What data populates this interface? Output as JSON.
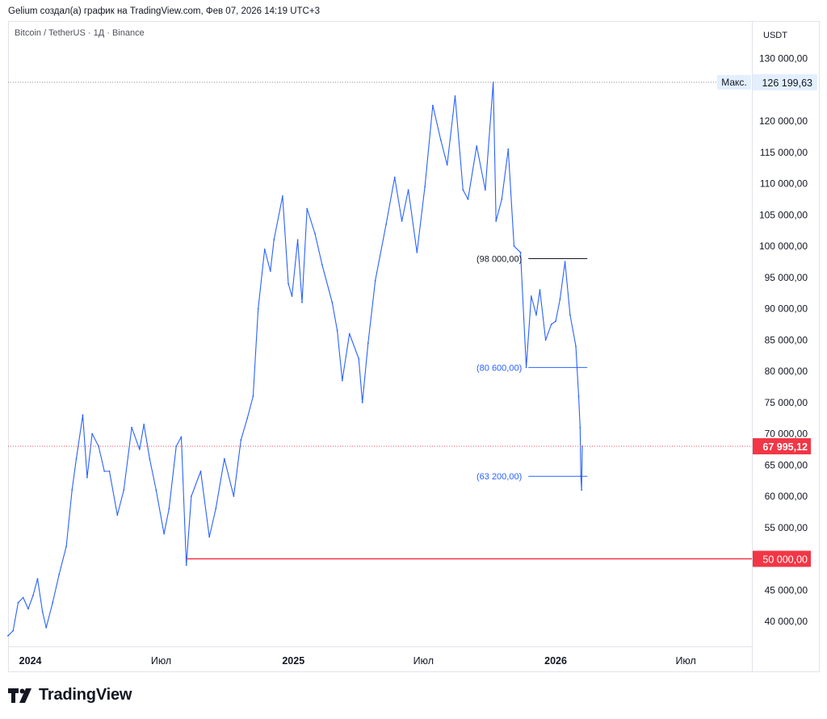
{
  "header": {
    "caption": "Gelium создал(а) график на TradingView.com, Фев 07, 2026 14:19 UTC+3"
  },
  "chart_data": {
    "type": "line",
    "title": "Bitcoin / TetherUS · 1Д · Binance",
    "currency": "USDT",
    "ylim": [
      36000,
      136000
    ],
    "xlim": [
      "2023-12-01",
      "2026-10-01"
    ],
    "y_ticks": [
      {
        "value": 40000,
        "label": "40 000,00"
      },
      {
        "value": 45000,
        "label": "45 000,00"
      },
      {
        "value": 55000,
        "label": "55 000,00"
      },
      {
        "value": 60000,
        "label": "60 000,00"
      },
      {
        "value": 65000,
        "label": "65 000,00"
      },
      {
        "value": 70000,
        "label": "70 000,00"
      },
      {
        "value": 75000,
        "label": "75 000,00"
      },
      {
        "value": 80000,
        "label": "80 000,00"
      },
      {
        "value": 85000,
        "label": "85 000,00"
      },
      {
        "value": 90000,
        "label": "90 000,00"
      },
      {
        "value": 95000,
        "label": "95 000,00"
      },
      {
        "value": 100000,
        "label": "100 000,00"
      },
      {
        "value": 105000,
        "label": "105 000,00"
      },
      {
        "value": 110000,
        "label": "110 000,00"
      },
      {
        "value": 115000,
        "label": "115 000,00"
      },
      {
        "value": 120000,
        "label": "120 000,00"
      },
      {
        "value": 130000,
        "label": "130 000,00"
      }
    ],
    "x_ticks": [
      {
        "date": "2024-01-01",
        "label": "2024",
        "bold": true
      },
      {
        "date": "2024-07-01",
        "label": "Июл",
        "bold": false
      },
      {
        "date": "2025-01-01",
        "label": "2025",
        "bold": true
      },
      {
        "date": "2025-07-01",
        "label": "Июл",
        "bold": false
      },
      {
        "date": "2026-01-01",
        "label": "2026",
        "bold": true
      },
      {
        "date": "2026-07-01",
        "label": "Июл",
        "bold": false
      }
    ],
    "series": [
      {
        "color": "#2962ff",
        "points": [
          [
            "2023-12-01",
            37700
          ],
          [
            "2023-12-08",
            38500
          ],
          [
            "2023-12-15",
            43000
          ],
          [
            "2023-12-22",
            43800
          ],
          [
            "2023-12-29",
            42000
          ],
          [
            "2024-01-05",
            44200
          ],
          [
            "2024-01-11",
            46800
          ],
          [
            "2024-01-18",
            41500
          ],
          [
            "2024-01-23",
            39000
          ],
          [
            "2024-02-01",
            43000
          ],
          [
            "2024-02-10",
            47500
          ],
          [
            "2024-02-20",
            52000
          ],
          [
            "2024-02-28",
            61000
          ],
          [
            "2024-03-05",
            66000
          ],
          [
            "2024-03-14",
            73000
          ],
          [
            "2024-03-20",
            63000
          ],
          [
            "2024-03-27",
            70000
          ],
          [
            "2024-04-05",
            68000
          ],
          [
            "2024-04-13",
            64000
          ],
          [
            "2024-04-20",
            64000
          ],
          [
            "2024-05-01",
            57000
          ],
          [
            "2024-05-10",
            61000
          ],
          [
            "2024-05-21",
            71000
          ],
          [
            "2024-06-01",
            67500
          ],
          [
            "2024-06-07",
            71500
          ],
          [
            "2024-06-15",
            66000
          ],
          [
            "2024-06-24",
            61000
          ],
          [
            "2024-07-05",
            54000
          ],
          [
            "2024-07-12",
            58000
          ],
          [
            "2024-07-22",
            68000
          ],
          [
            "2024-07-29",
            69500
          ],
          [
            "2024-08-05",
            49000
          ],
          [
            "2024-08-12",
            60000
          ],
          [
            "2024-08-25",
            64000
          ],
          [
            "2024-09-06",
            53500
          ],
          [
            "2024-09-15",
            58000
          ],
          [
            "2024-09-27",
            66000
          ],
          [
            "2024-10-10",
            60000
          ],
          [
            "2024-10-20",
            69000
          ],
          [
            "2024-10-29",
            72500
          ],
          [
            "2024-11-06",
            76000
          ],
          [
            "2024-11-13",
            90000
          ],
          [
            "2024-11-22",
            99500
          ],
          [
            "2024-11-30",
            96000
          ],
          [
            "2024-12-05",
            101000
          ],
          [
            "2024-12-17",
            108000
          ],
          [
            "2024-12-25",
            94000
          ],
          [
            "2024-12-30",
            92000
          ],
          [
            "2025-01-07",
            101000
          ],
          [
            "2025-01-13",
            91000
          ],
          [
            "2025-01-20",
            106000
          ],
          [
            "2025-01-31",
            102000
          ],
          [
            "2025-02-10",
            97000
          ],
          [
            "2025-02-24",
            91000
          ],
          [
            "2025-03-03",
            86500
          ],
          [
            "2025-03-10",
            78500
          ],
          [
            "2025-03-20",
            86000
          ],
          [
            "2025-04-02",
            82000
          ],
          [
            "2025-04-07",
            75000
          ],
          [
            "2025-04-15",
            84500
          ],
          [
            "2025-04-25",
            94500
          ],
          [
            "2025-05-10",
            103500
          ],
          [
            "2025-05-22",
            111000
          ],
          [
            "2025-06-01",
            104000
          ],
          [
            "2025-06-10",
            109000
          ],
          [
            "2025-06-22",
            99000
          ],
          [
            "2025-07-03",
            109500
          ],
          [
            "2025-07-14",
            122500
          ],
          [
            "2025-07-25",
            117000
          ],
          [
            "2025-08-03",
            113000
          ],
          [
            "2025-08-14",
            124000
          ],
          [
            "2025-08-25",
            109000
          ],
          [
            "2025-09-01",
            107500
          ],
          [
            "2025-09-13",
            116000
          ],
          [
            "2025-09-25",
            109000
          ],
          [
            "2025-10-06",
            126199.63
          ],
          [
            "2025-10-10",
            104000
          ],
          [
            "2025-10-18",
            107500
          ],
          [
            "2025-10-27",
            115500
          ],
          [
            "2025-11-04",
            100000
          ],
          [
            "2025-11-13",
            99000
          ],
          [
            "2025-11-21",
            80600
          ],
          [
            "2025-11-28",
            92000
          ],
          [
            "2025-12-05",
            89000
          ],
          [
            "2025-12-10",
            93000
          ],
          [
            "2025-12-18",
            85000
          ],
          [
            "2025-12-26",
            87500
          ],
          [
            "2026-01-01",
            88000
          ],
          [
            "2026-01-07",
            91500
          ],
          [
            "2026-01-14",
            97500
          ],
          [
            "2026-01-21",
            89000
          ],
          [
            "2026-01-29",
            84000
          ],
          [
            "2026-02-02",
            76000
          ],
          [
            "2026-02-04",
            71000
          ],
          [
            "2026-02-05",
            63200
          ],
          [
            "2026-02-06",
            61000
          ],
          [
            "2026-02-07",
            67995.12
          ]
        ]
      }
    ],
    "annotations": {
      "max": {
        "tag": "Макс.",
        "value": 126199.63,
        "label": "126 199,63"
      },
      "last": {
        "value": 67995.12,
        "label": "67 995,12",
        "color": "#f23645"
      },
      "horizontal_line": {
        "value": 50000,
        "label": "50 000,00",
        "color": "#f23645",
        "from": "2024-08-05"
      },
      "levels": [
        {
          "value": 98000,
          "label": "(98 000,00)",
          "color": "#131722",
          "from": "2025-11-24",
          "to": "2026-02-14"
        },
        {
          "value": 80600,
          "label": "(80 600,00)",
          "color": "#2962ff",
          "from": "2025-11-24",
          "to": "2026-02-14"
        },
        {
          "value": 63200,
          "label": "(63 200,00)",
          "color": "#2962ff",
          "from": "2025-11-24",
          "to": "2026-02-14"
        }
      ]
    },
    "grid": false,
    "legend": "none"
  },
  "footer": {
    "logo_text": "TradingView"
  }
}
